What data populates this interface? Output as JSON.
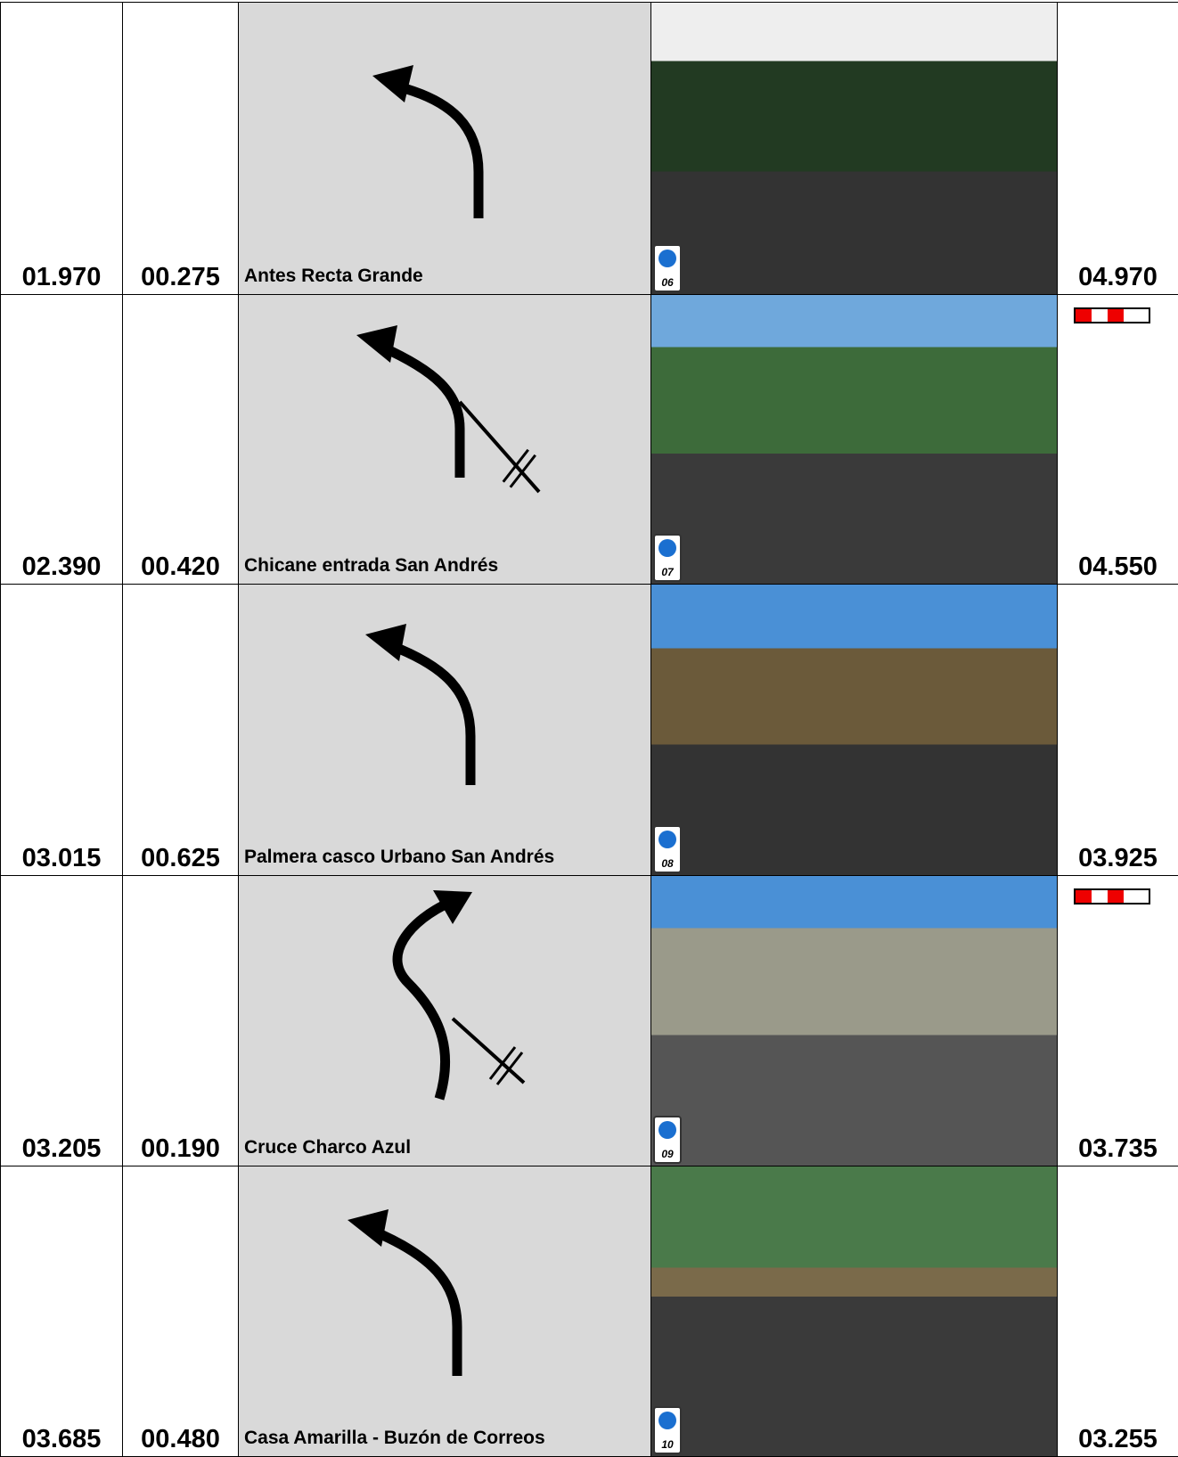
{
  "rows": [
    {
      "total": "01.970",
      "partial": "00.275",
      "description": "Antes Recta Grande",
      "photo": "06",
      "remaining": "04.970"
    },
    {
      "total": "02.390",
      "partial": "00.420",
      "description": "Chicane entrada San Andrés",
      "photo": "07",
      "remaining": "04.550"
    },
    {
      "total": "03.015",
      "partial": "00.625",
      "description": "Palmera casco Urbano San Andrés",
      "photo": "08",
      "remaining": "03.925"
    },
    {
      "total": "03.205",
      "partial": "00.190",
      "description": "Cruce Charco Azul",
      "photo": "09",
      "remaining": "03.735"
    },
    {
      "total": "03.685",
      "partial": "00.480",
      "description": "Casa Amarilla - Buzón de Correos",
      "photo": "10",
      "remaining": "03.255"
    }
  ]
}
